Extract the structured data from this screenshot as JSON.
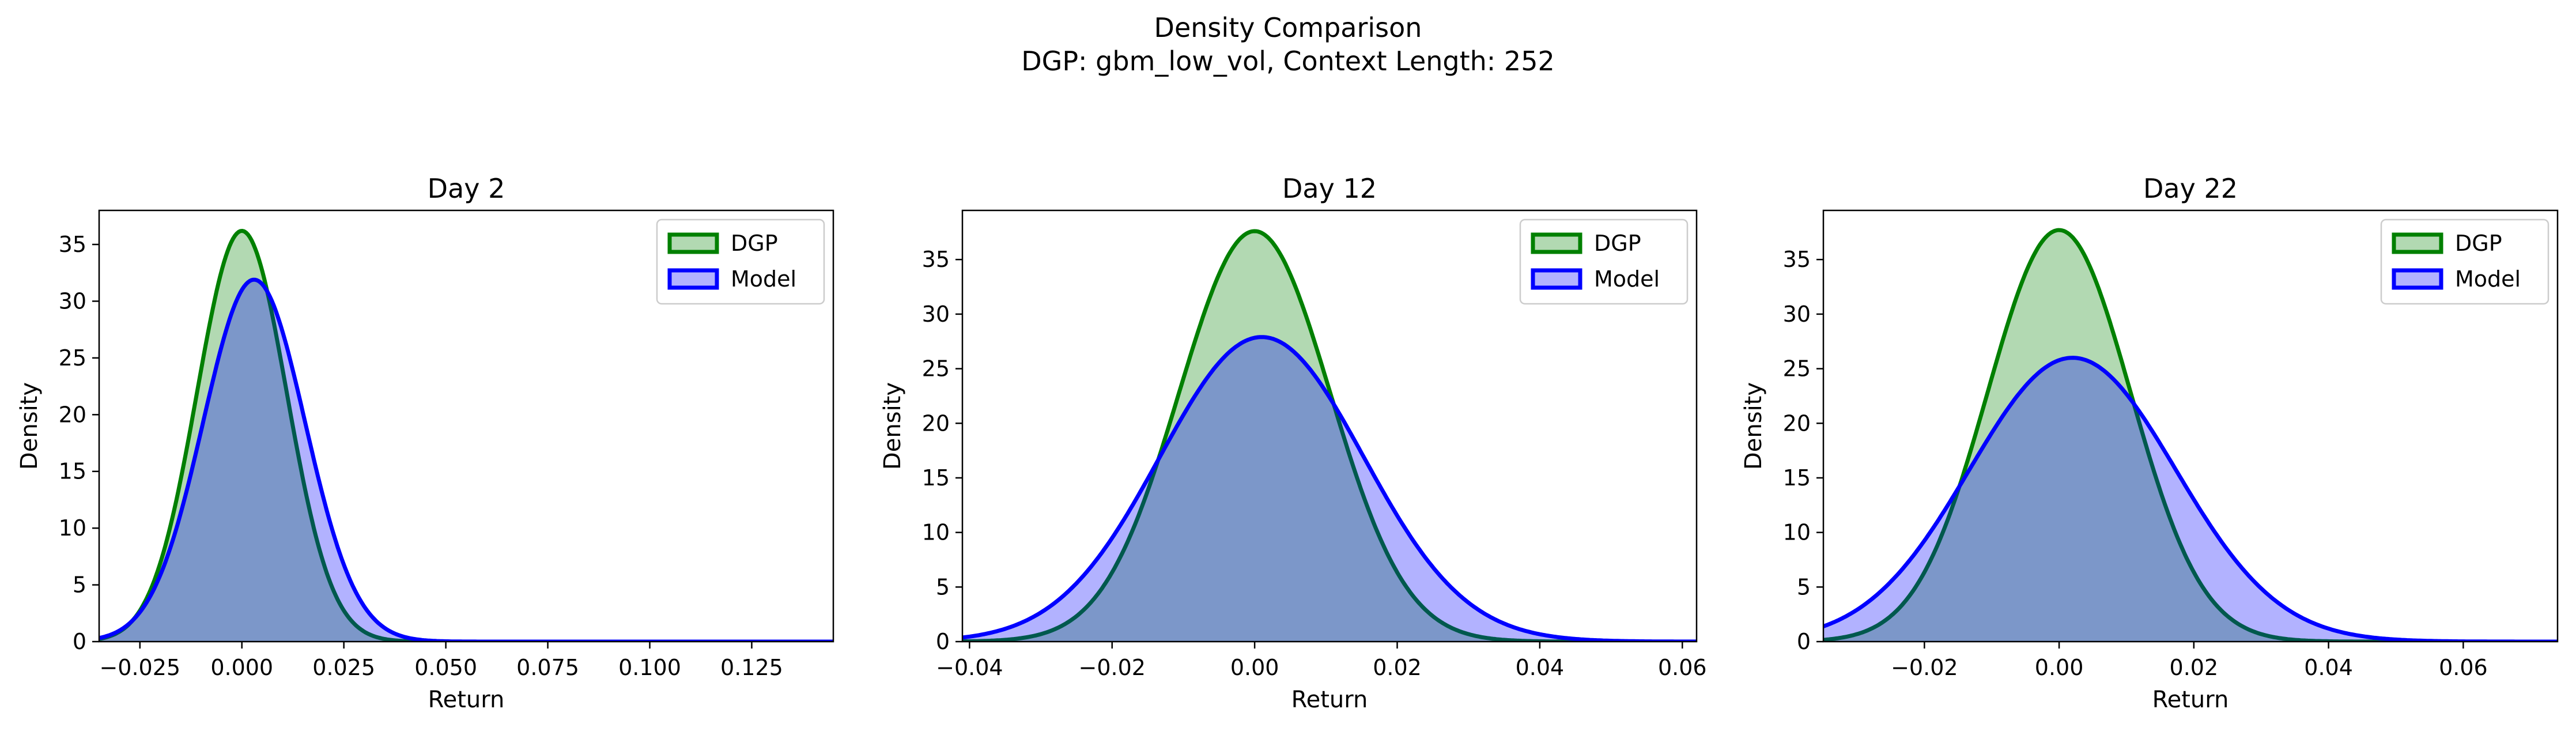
{
  "suptitle": {
    "line1": "Density Comparison",
    "line2": "DGP: gbm_low_vol, Context Length: 252"
  },
  "colors": {
    "dgp_line": "#008000",
    "dgp_fill": "#008000",
    "model_line": "#0000ff",
    "model_fill": "#0000ff",
    "axes": "#000000",
    "text": "#000000"
  },
  "legend": {
    "position": "upper-right",
    "entries": [
      "DGP",
      "Model"
    ]
  },
  "chart_data": [
    {
      "type": "area",
      "title": "Day 2",
      "xlabel": "Return",
      "ylabel": "Density",
      "xlim": [
        -0.035,
        0.145
      ],
      "ylim": [
        0,
        38
      ],
      "xticks": [
        -0.025,
        0.0,
        0.025,
        0.05,
        0.075,
        0.1,
        0.125
      ],
      "xtick_labels": [
        "−0.025",
        "0.000",
        "0.025",
        "0.050",
        "0.075",
        "0.100",
        "0.125"
      ],
      "yticks": [
        0,
        5,
        10,
        15,
        20,
        25,
        30,
        35
      ],
      "ytick_labels": [
        "0",
        "5",
        "10",
        "15",
        "20",
        "25",
        "30",
        "35"
      ],
      "series": [
        {
          "name": "DGP",
          "peak_x": 0.0,
          "peak_y": 36.2,
          "sd": 0.011
        },
        {
          "name": "Model",
          "peak_x": 0.003,
          "peak_y": 31.9,
          "sd": 0.0125
        }
      ]
    },
    {
      "type": "area",
      "title": "Day 12",
      "xlabel": "Return",
      "ylabel": "Density",
      "xlim": [
        -0.041,
        0.062
      ],
      "ylim": [
        0,
        39.5
      ],
      "xticks": [
        -0.04,
        -0.02,
        0.0,
        0.02,
        0.04,
        0.06
      ],
      "xtick_labels": [
        "−0.04",
        "−0.02",
        "0.00",
        "0.02",
        "0.04",
        "0.06"
      ],
      "yticks": [
        0,
        5,
        10,
        15,
        20,
        25,
        30,
        35
      ],
      "ytick_labels": [
        "0",
        "5",
        "10",
        "15",
        "20",
        "25",
        "30",
        "35"
      ],
      "series": [
        {
          "name": "DGP",
          "peak_x": 0.0,
          "peak_y": 37.6,
          "sd": 0.0106
        },
        {
          "name": "Model",
          "peak_x": 0.001,
          "peak_y": 27.9,
          "sd": 0.0143
        }
      ]
    },
    {
      "type": "area",
      "title": "Day 22",
      "xlabel": "Return",
      "ylabel": "Density",
      "xlim": [
        -0.035,
        0.074
      ],
      "ylim": [
        0,
        39.5
      ],
      "xticks": [
        -0.02,
        0.0,
        0.02,
        0.04,
        0.06
      ],
      "xtick_labels": [
        "−0.02",
        "0.00",
        "0.02",
        "0.04",
        "0.06"
      ],
      "yticks": [
        0,
        5,
        10,
        15,
        20,
        25,
        30,
        35
      ],
      "ytick_labels": [
        "0",
        "5",
        "10",
        "15",
        "20",
        "25",
        "30",
        "35"
      ],
      "series": [
        {
          "name": "DGP",
          "peak_x": 0.0,
          "peak_y": 37.7,
          "sd": 0.0106
        },
        {
          "name": "Model",
          "peak_x": 0.002,
          "peak_y": 26.0,
          "sd": 0.0153
        }
      ]
    }
  ]
}
